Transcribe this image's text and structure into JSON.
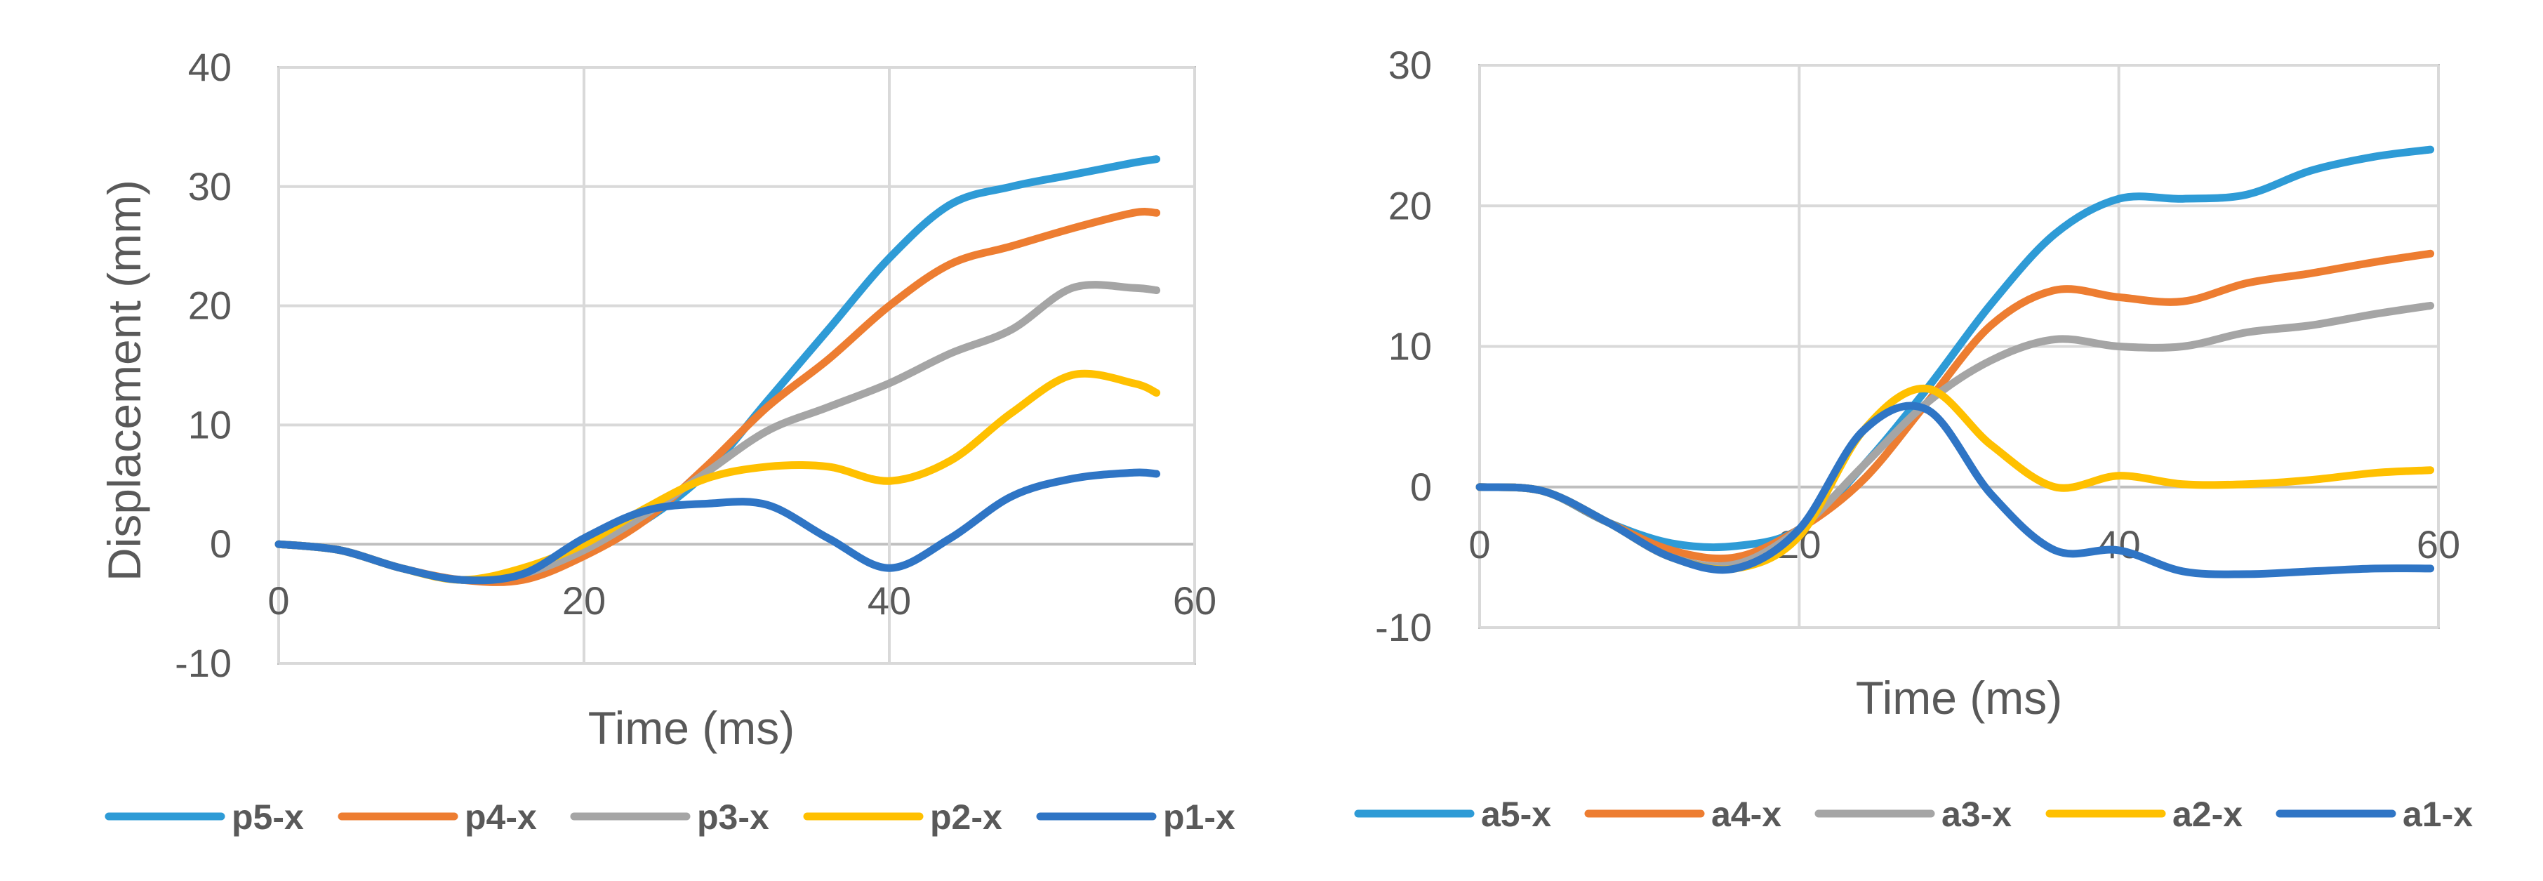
{
  "chart_data": [
    {
      "type": "line",
      "title": "",
      "xlabel": "Time (ms)",
      "ylabel": "Displacement (mm)",
      "xlim": [
        0,
        60
      ],
      "ylim": [
        -10,
        40
      ],
      "xticks": [
        0,
        20,
        40,
        60
      ],
      "yticks": [
        -10,
        0,
        10,
        20,
        30,
        40
      ],
      "grid": true,
      "legend": "bottom",
      "series": [
        {
          "name": "p5-x",
          "color": "#2E9BD6",
          "x": [
            0,
            4,
            8,
            12,
            16,
            20,
            24,
            28,
            32,
            36,
            40,
            44,
            48,
            52,
            56,
            57.5
          ],
          "y": [
            0,
            -0.5,
            -2,
            -3,
            -2.5,
            -0.5,
            2,
            6,
            12,
            18,
            24,
            28.5,
            30,
            31,
            32,
            32.3
          ]
        },
        {
          "name": "p4-x",
          "color": "#ED7D31",
          "x": [
            0,
            4,
            8,
            12,
            16,
            20,
            24,
            28,
            32,
            36,
            40,
            44,
            48,
            52,
            56,
            57.5
          ],
          "y": [
            0,
            -0.5,
            -2,
            -3,
            -3,
            -1,
            2,
            6.5,
            11.5,
            15.5,
            20,
            23.5,
            25,
            26.5,
            27.8,
            27.8
          ]
        },
        {
          "name": "p3-x",
          "color": "#A5A5A5",
          "x": [
            0,
            4,
            8,
            12,
            16,
            20,
            24,
            28,
            32,
            36,
            40,
            44,
            48,
            52,
            56,
            57.5
          ],
          "y": [
            0,
            -0.5,
            -2,
            -3,
            -2.5,
            -0.5,
            2.5,
            6,
            9.5,
            11.5,
            13.5,
            16,
            18,
            21.5,
            21.5,
            21.3
          ]
        },
        {
          "name": "p2-x",
          "color": "#FFC000",
          "x": [
            0,
            4,
            8,
            12,
            16,
            20,
            24,
            28,
            32,
            36,
            40,
            44,
            48,
            52,
            56,
            57.5
          ],
          "y": [
            0,
            -0.5,
            -2,
            -3,
            -2,
            0,
            3,
            5.5,
            6.5,
            6.5,
            5.3,
            7,
            11,
            14.2,
            13.5,
            12.7
          ]
        },
        {
          "name": "p1-x",
          "color": "#2F75C5",
          "x": [
            0,
            4,
            8,
            12,
            16,
            20,
            24,
            28,
            32,
            36,
            40,
            44,
            48,
            52,
            56,
            57.5
          ],
          "y": [
            0,
            -0.5,
            -2,
            -3,
            -2.5,
            0.5,
            2.8,
            3.4,
            3.3,
            0.5,
            -2,
            0.5,
            4,
            5.5,
            6,
            5.9
          ]
        }
      ],
      "legend_entries": [
        "p5-x",
        "p4-x",
        "p3-x",
        "p2-x",
        "p1-x"
      ]
    },
    {
      "type": "line",
      "title": "",
      "xlabel": "Time (ms)",
      "ylabel": "",
      "xlim": [
        0,
        60
      ],
      "ylim": [
        -10,
        30
      ],
      "xticks": [
        0,
        20,
        40,
        60
      ],
      "yticks": [
        -10,
        0,
        10,
        20,
        30
      ],
      "grid": true,
      "legend": "bottom",
      "series": [
        {
          "name": "a5-x",
          "color": "#2E9BD6",
          "x": [
            0,
            4,
            8,
            12,
            16,
            20,
            24,
            28,
            32,
            36,
            40,
            44,
            48,
            52,
            56,
            59.5
          ],
          "y": [
            0,
            -0.3,
            -2.5,
            -4,
            -4.2,
            -3,
            1.5,
            7,
            13,
            18,
            20.5,
            20.5,
            20.8,
            22.5,
            23.5,
            24
          ]
        },
        {
          "name": "a4-x",
          "color": "#ED7D31",
          "x": [
            0,
            4,
            8,
            12,
            16,
            20,
            24,
            28,
            32,
            36,
            40,
            44,
            48,
            52,
            56,
            59.5
          ],
          "y": [
            0,
            -0.3,
            -2.5,
            -4.5,
            -5,
            -3,
            0.5,
            6,
            11.5,
            14,
            13.5,
            13.2,
            14.5,
            15.2,
            16,
            16.6
          ]
        },
        {
          "name": "a3-x",
          "color": "#A5A5A5",
          "x": [
            0,
            4,
            8,
            12,
            16,
            20,
            24,
            28,
            32,
            36,
            40,
            44,
            48,
            52,
            56,
            59.5
          ],
          "y": [
            0,
            -0.3,
            -2.5,
            -5,
            -5.5,
            -3,
            1.5,
            6,
            9,
            10.5,
            10,
            10,
            11,
            11.5,
            12.3,
            12.9
          ]
        },
        {
          "name": "a2-x",
          "color": "#FFC000",
          "x": [
            0,
            4,
            8,
            12,
            16,
            20,
            24,
            28,
            32,
            36,
            40,
            44,
            48,
            52,
            56,
            59.5
          ],
          "y": [
            0,
            -0.3,
            -2.5,
            -5,
            -5.8,
            -3.5,
            4,
            7,
            3,
            0,
            0.8,
            0.2,
            0.2,
            0.5,
            1,
            1.2
          ]
        },
        {
          "name": "a1-x",
          "color": "#2F75C5",
          "x": [
            0,
            4,
            8,
            12,
            16,
            20,
            24,
            28,
            32,
            36,
            40,
            44,
            48,
            52,
            56,
            59.5
          ],
          "y": [
            0,
            -0.3,
            -2.5,
            -5,
            -5.8,
            -3,
            4,
            5.5,
            -0.5,
            -4.5,
            -4.5,
            -6,
            -6.2,
            -6,
            -5.8,
            -5.8
          ]
        }
      ],
      "legend_entries": [
        "a5-x",
        "a4-x",
        "a3-x",
        "a2-x",
        "a1-x"
      ]
    }
  ]
}
